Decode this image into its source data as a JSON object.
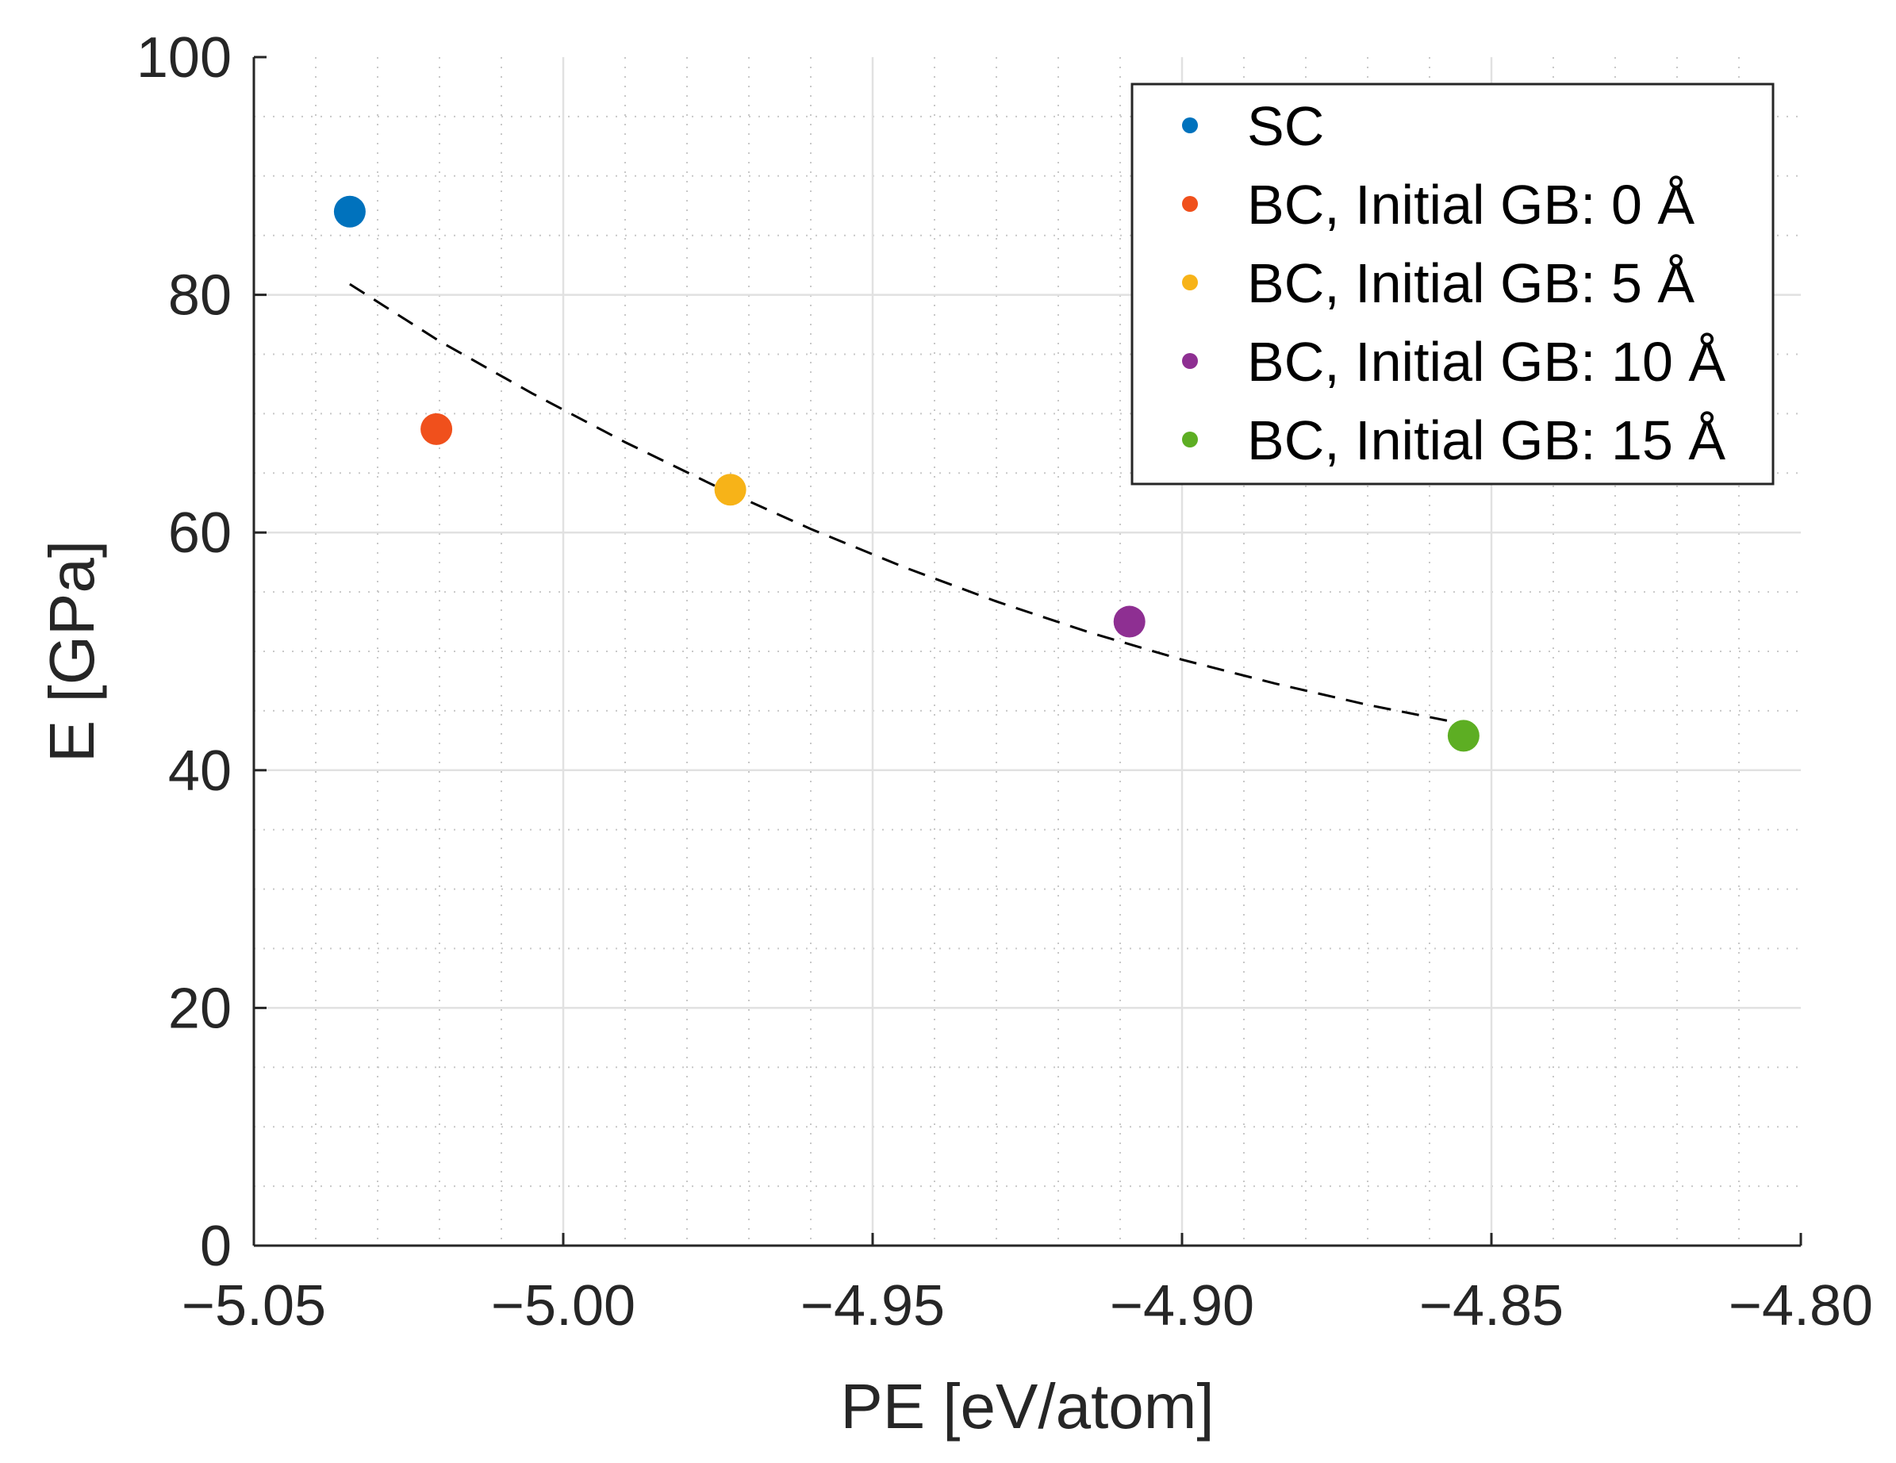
{
  "chart_data": {
    "type": "scatter",
    "xlabel": "PE [eV/atom]",
    "ylabel": "E [GPa]",
    "xlim": [
      -5.05,
      -4.8
    ],
    "ylim": [
      0,
      100
    ],
    "x_ticks": [
      -5.05,
      -5.0,
      -4.95,
      -4.9,
      -4.85,
      -4.8
    ],
    "x_tick_labels": [
      "−5.05",
      "−5.00",
      "−4.95",
      "−4.90",
      "−4.85",
      "−4.80"
    ],
    "y_ticks": [
      0,
      20,
      40,
      60,
      80,
      100
    ],
    "y_tick_labels": [
      "0",
      "20",
      "40",
      "60",
      "80",
      "100"
    ],
    "x_minor_step": 0.01,
    "y_minor_step": 5,
    "grid": true,
    "minor_grid": true,
    "legend_position": "top-right",
    "series": [
      {
        "name": "SC",
        "color": "#0072BD",
        "x": [
          -5.0345
        ],
        "y": [
          87.0
        ]
      },
      {
        "name": "BC, Initial GB: 0 Å",
        "color": "#F0501C",
        "x": [
          -5.0205
        ],
        "y": [
          68.7
        ]
      },
      {
        "name": "BC, Initial GB: 5 Å",
        "color": "#F7B318",
        "x": [
          -4.973
        ],
        "y": [
          63.6
        ]
      },
      {
        "name": "BC, Initial GB: 10 Å",
        "color": "#8E2F92",
        "x": [
          -4.9085
        ],
        "y": [
          52.5
        ]
      },
      {
        "name": "BC, Initial GB: 15 Å",
        "color": "#5DAE23",
        "x": [
          -4.8545
        ],
        "y": [
          42.9
        ]
      }
    ],
    "fit_line": {
      "style": "dashed",
      "color": "#000000",
      "x": [
        -5.0345,
        -5.02,
        -5.005,
        -4.99,
        -4.975,
        -4.96,
        -4.945,
        -4.93,
        -4.915,
        -4.9,
        -4.885,
        -4.87,
        -4.8545
      ],
      "y": [
        80.9,
        76.1,
        71.7,
        67.6,
        63.8,
        60.3,
        57.1,
        54.2,
        51.6,
        49.3,
        47.3,
        45.5,
        43.9
      ]
    }
  }
}
